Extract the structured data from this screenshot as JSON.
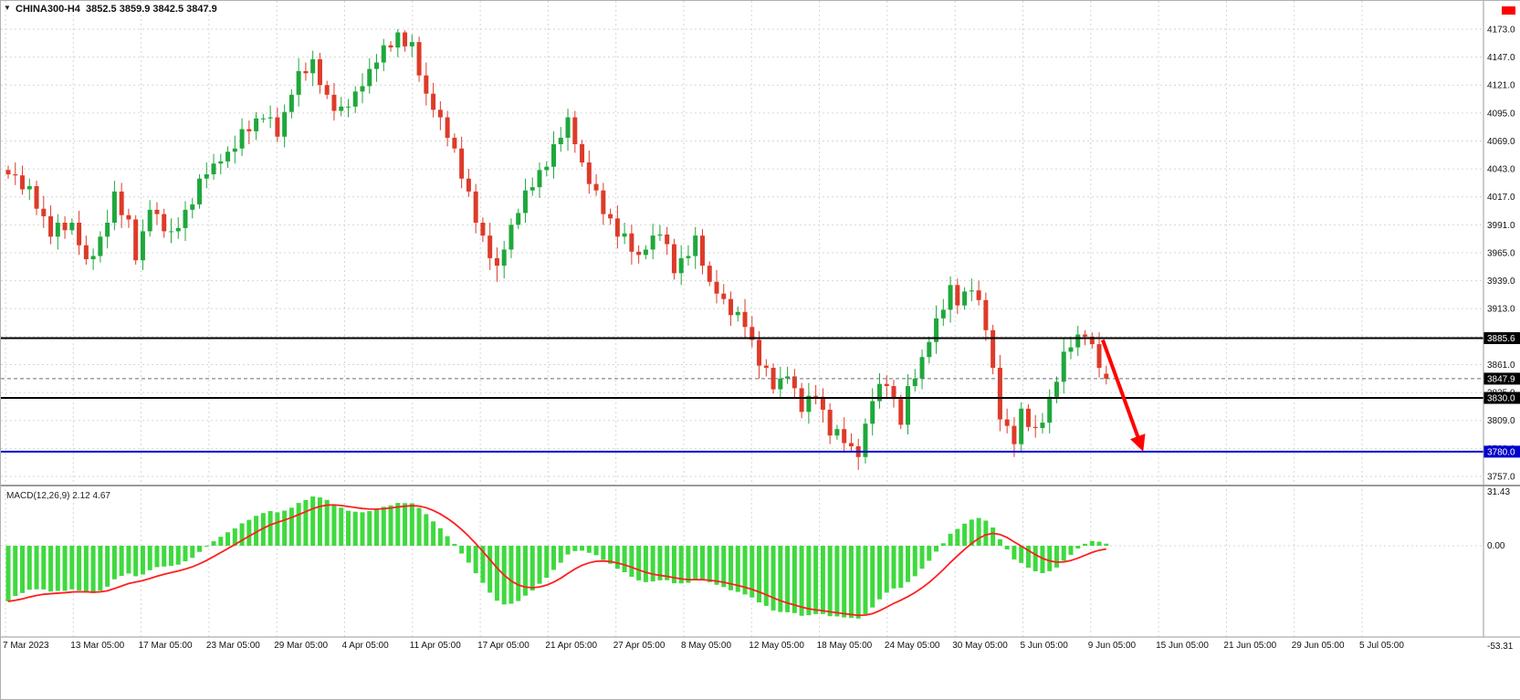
{
  "quote_bar": {
    "text": "CHINA300-H4  3852.5 3859.9 3842.5 3847.9"
  },
  "icons": {
    "dropdown": "▼"
  },
  "macd_panel": {
    "label": "MACD(12,26,9) 2.12 4.67"
  },
  "colors": {
    "up": "#1fa83c",
    "down": "#dd3b2a",
    "hist": "#3fd93f",
    "signal": "#ff1f1f",
    "grid": "#d6d6d6",
    "separator": "#9a9a9a",
    "axis_text": "#111111",
    "arrow": "#ff0000",
    "marker": "#ff0000",
    "tag_text": "#ffffff"
  },
  "chart_data": [
    {
      "type": "candlestick",
      "title": "CHINA300-H4",
      "timeframe": "H4",
      "ylim": [
        3749,
        4199
      ],
      "grid": true,
      "y_ticks": [
        "4173.0",
        "4147.0",
        "4121.0",
        "4095.0",
        "4069.0",
        "4043.0",
        "4017.0",
        "3991.0",
        "3965.0",
        "3939.0",
        "3913.0",
        "3887.0",
        "3861.0",
        "3835.0",
        "3809.0",
        "3783.0",
        "3757.0"
      ],
      "x_labels": [
        "7 Mar 2023",
        "13 Mar 05:00",
        "17 Mar 05:00",
        "23 Mar 05:00",
        "29 Mar 05:00",
        "4 Apr 05:00",
        "11 Apr 05:00",
        "17 Apr 05:00",
        "21 Apr 05:00",
        "27 Apr 05:00",
        "8 May 05:00",
        "12 May 05:00",
        "18 May 05:00",
        "24 May 05:00",
        "30 May 05:00",
        "5 Jun 05:00",
        "9 Jun 05:00",
        "15 Jun 05:00",
        "21 Jun 05:00",
        "29 Jun 05:00",
        "5 Jul 05:00"
      ],
      "levels": [
        {
          "price": 3885.6,
          "label": "3885.6",
          "line_color": "#000000",
          "tag_bg": "#000000",
          "width": 2,
          "style": "solid",
          "name": "resistance-line"
        },
        {
          "price": 3847.9,
          "label": "3847.9",
          "line_color": "#607080",
          "tag_bg": "#000000",
          "width": 1,
          "style": "dashed",
          "name": "bid-price-line"
        },
        {
          "price": 3830.0,
          "label": "3830.0",
          "line_color": "#000000",
          "tag_bg": "#000000",
          "width": 2,
          "style": "solid",
          "name": "support-line"
        },
        {
          "price": 3780.0,
          "label": "3780.0",
          "line_color": "#0000cc",
          "tag_bg": "#0000cc",
          "width": 2,
          "style": "solid",
          "name": "lower-support-line"
        }
      ],
      "arrow": {
        "from_index": 154.5,
        "from_price": 3884,
        "to_index": 160,
        "to_price": 3784
      },
      "ohlc": [
        [
          4042,
          4046,
          4034,
          4038
        ],
        [
          4038,
          4049,
          4028,
          4037
        ],
        [
          4037,
          4046,
          4019,
          4024
        ],
        [
          4024,
          4034,
          4014,
          4027
        ],
        [
          4027,
          4032,
          4000,
          4006
        ],
        [
          4006,
          4018,
          3988,
          3999
        ],
        [
          3999,
          4009,
          3973,
          3980
        ],
        [
          3980,
          4001,
          3968,
          3993
        ],
        [
          3993,
          3999,
          3978,
          3986
        ],
        [
          3986,
          3997,
          3982,
          3993
        ],
        [
          3993,
          4004,
          3963,
          3972
        ],
        [
          3972,
          3981,
          3954,
          3959
        ],
        [
          3959,
          3969,
          3949,
          3962
        ],
        [
          3962,
          3985,
          3956,
          3980
        ],
        [
          3980,
          4005,
          3969,
          3993
        ],
        [
          3993,
          4032,
          3986,
          4022
        ],
        [
          4022,
          4030,
          3988,
          4000
        ],
        [
          4000,
          4006,
          3988,
          3996
        ],
        [
          3996,
          4000,
          3954,
          3958
        ],
        [
          3958,
          3996,
          3949,
          3985
        ],
        [
          3985,
          4014,
          3980,
          4005
        ],
        [
          4005,
          4012,
          3991,
          4001
        ],
        [
          4001,
          4006,
          3979,
          3985
        ],
        [
          3985,
          3997,
          3974,
          3985
        ],
        [
          3985,
          3998,
          3978,
          3988
        ],
        [
          3988,
          4013,
          3976,
          4005
        ],
        [
          4005,
          4016,
          3997,
          4010
        ],
        [
          4010,
          4038,
          4006,
          4034
        ],
        [
          4034,
          4049,
          4025,
          4038
        ],
        [
          4038,
          4057,
          4033,
          4048
        ],
        [
          4048,
          4057,
          4038,
          4050
        ],
        [
          4050,
          4064,
          4044,
          4059
        ],
        [
          4059,
          4074,
          4048,
          4062
        ],
        [
          4062,
          4090,
          4055,
          4080
        ],
        [
          4080,
          4088,
          4066,
          4078
        ],
        [
          4078,
          4096,
          4070,
          4090
        ],
        [
          4090,
          4094,
          4086,
          4090
        ],
        [
          4090,
          4102,
          4081,
          4091
        ],
        [
          4091,
          4100,
          4068,
          4073
        ],
        [
          4073,
          4103,
          4063,
          4096
        ],
        [
          4096,
          4117,
          4090,
          4112
        ],
        [
          4112,
          4146,
          4101,
          4134
        ],
        [
          4134,
          4142,
          4125,
          4132
        ],
        [
          4132,
          4153,
          4120,
          4145
        ],
        [
          4145,
          4151,
          4113,
          4121
        ],
        [
          4121,
          4125,
          4108,
          4112
        ],
        [
          4112,
          4123,
          4088,
          4097
        ],
        [
          4097,
          4110,
          4092,
          4101
        ],
        [
          4101,
          4108,
          4091,
          4101
        ],
        [
          4101,
          4120,
          4095,
          4115
        ],
        [
          4115,
          4132,
          4104,
          4120
        ],
        [
          4120,
          4146,
          4113,
          4136
        ],
        [
          4136,
          4150,
          4124,
          4142
        ],
        [
          4142,
          4164,
          4134,
          4158
        ],
        [
          4158,
          4162,
          4152,
          4156
        ],
        [
          4156,
          4173,
          4147,
          4170
        ],
        [
          4170,
          4172,
          4152,
          4157
        ],
        [
          4157,
          4168,
          4147,
          4161
        ],
        [
          4161,
          4166,
          4124,
          4130
        ],
        [
          4130,
          4142,
          4102,
          4113
        ],
        [
          4113,
          4123,
          4091,
          4098
        ],
        [
          4098,
          4106,
          4079,
          4091
        ],
        [
          4091,
          4097,
          4064,
          4072
        ],
        [
          4072,
          4076,
          4058,
          4062
        ],
        [
          4062,
          4073,
          4025,
          4034
        ],
        [
          4034,
          4043,
          4017,
          4022
        ],
        [
          4022,
          4029,
          3983,
          3993
        ],
        [
          3993,
          3998,
          3975,
          3981
        ],
        [
          3981,
          3993,
          3949,
          3960
        ],
        [
          3960,
          3970,
          3938,
          3953
        ],
        [
          3953,
          3976,
          3941,
          3968
        ],
        [
          3968,
          3997,
          3960,
          3991
        ],
        [
          3991,
          4006,
          3987,
          4002
        ],
        [
          4002,
          4034,
          3993,
          4023
        ],
        [
          4023,
          4035,
          4018,
          4026
        ],
        [
          4026,
          4049,
          4016,
          4042
        ],
        [
          4042,
          4050,
          4036,
          4045
        ],
        [
          4045,
          4078,
          4034,
          4066
        ],
        [
          4066,
          4082,
          4059,
          4072
        ],
        [
          4072,
          4099,
          4060,
          4091
        ],
        [
          4091,
          4097,
          4058,
          4066
        ],
        [
          4066,
          4070,
          4045,
          4049
        ],
        [
          4049,
          4060,
          4020,
          4029
        ],
        [
          4029,
          4038,
          4018,
          4023
        ],
        [
          4023,
          4030,
          3991,
          4001
        ],
        [
          4001,
          4006,
          3991,
          3997
        ],
        [
          3997,
          4009,
          3969,
          3980
        ],
        [
          3980,
          3993,
          3973,
          3983
        ],
        [
          3983,
          3991,
          3954,
          3966
        ],
        [
          3966,
          3972,
          3955,
          3963
        ],
        [
          3963,
          3972,
          3959,
          3968
        ],
        [
          3968,
          3992,
          3959,
          3981
        ],
        [
          3981,
          3991,
          3976,
          3982
        ],
        [
          3982,
          3989,
          3963,
          3973
        ],
        [
          3973,
          3978,
          3940,
          3946
        ],
        [
          3946,
          3972,
          3935,
          3960
        ],
        [
          3960,
          3972,
          3953,
          3962
        ],
        [
          3962,
          3989,
          3950,
          3981
        ],
        [
          3981,
          3987,
          3945,
          3953
        ],
        [
          3953,
          3957,
          3934,
          3938
        ],
        [
          3938,
          3949,
          3918,
          3927
        ],
        [
          3927,
          3936,
          3917,
          3922
        ],
        [
          3922,
          3929,
          3897,
          3907
        ],
        [
          3907,
          3915,
          3901,
          3910
        ],
        [
          3910,
          3922,
          3885,
          3896
        ],
        [
          3896,
          3906,
          3877,
          3884
        ],
        [
          3884,
          3892,
          3848,
          3860
        ],
        [
          3860,
          3866,
          3850,
          3858
        ],
        [
          3858,
          3862,
          3834,
          3838
        ],
        [
          3838,
          3859,
          3829,
          3848
        ],
        [
          3848,
          3859,
          3843,
          3850
        ],
        [
          3850,
          3857,
          3829,
          3839
        ],
        [
          3839,
          3844,
          3811,
          3817
        ],
        [
          3817,
          3844,
          3806,
          3832
        ],
        [
          3832,
          3842,
          3824,
          3831
        ],
        [
          3831,
          3839,
          3807,
          3819
        ],
        [
          3819,
          3825,
          3787,
          3795
        ],
        [
          3795,
          3805,
          3791,
          3801
        ],
        [
          3801,
          3812,
          3779,
          3788
        ],
        [
          3788,
          3797,
          3780,
          3785
        ],
        [
          3785,
          3792,
          3763,
          3775
        ],
        [
          3775,
          3811,
          3769,
          3806
        ],
        [
          3806,
          3839,
          3795,
          3827
        ],
        [
          3827,
          3853,
          3820,
          3843
        ],
        [
          3843,
          3851,
          3829,
          3841
        ],
        [
          3841,
          3847,
          3821,
          3829
        ],
        [
          3829,
          3833,
          3801,
          3805
        ],
        [
          3805,
          3852,
          3796,
          3841
        ],
        [
          3841,
          3857,
          3836,
          3848
        ],
        [
          3848,
          3875,
          3838,
          3868
        ],
        [
          3868,
          3887,
          3862,
          3882
        ],
        [
          3882,
          3916,
          3871,
          3904
        ],
        [
          3904,
          3922,
          3897,
          3912
        ],
        [
          3912,
          3943,
          3900,
          3935
        ],
        [
          3935,
          3941,
          3908,
          3916
        ],
        [
          3916,
          3933,
          3912,
          3929
        ],
        [
          3929,
          3941,
          3920,
          3930
        ],
        [
          3930,
          3939,
          3916,
          3921
        ],
        [
          3921,
          3928,
          3883,
          3893
        ],
        [
          3893,
          3898,
          3852,
          3858
        ],
        [
          3858,
          3870,
          3799,
          3810
        ],
        [
          3810,
          3820,
          3797,
          3804
        ],
        [
          3804,
          3812,
          3775,
          3787
        ],
        [
          3787,
          3826,
          3779,
          3820
        ],
        [
          3820,
          3824,
          3799,
          3803
        ],
        [
          3803,
          3814,
          3793,
          3802
        ],
        [
          3802,
          3816,
          3797,
          3807
        ],
        [
          3807,
          3838,
          3797,
          3831
        ],
        [
          3831,
          3850,
          3825,
          3845
        ],
        [
          3845,
          3885,
          3834,
          3873
        ],
        [
          3873,
          3887,
          3866,
          3877
        ],
        [
          3877,
          3897,
          3869,
          3889
        ],
        [
          3889,
          3893,
          3879,
          3887
        ],
        [
          3887,
          3891,
          3876,
          3880
        ],
        [
          3880,
          3891,
          3849,
          3858
        ],
        [
          3852.5,
          3859.9,
          3842.5,
          3847.9
        ]
      ]
    },
    {
      "type": "macd",
      "label": "MACD(12,26,9) 2.12 4.67",
      "params": [
        12,
        26,
        9
      ],
      "main_value": "2.12",
      "signal_value": "4.67",
      "y_ticks": [
        "31.43",
        "0.00",
        "-53.31"
      ]
    }
  ]
}
